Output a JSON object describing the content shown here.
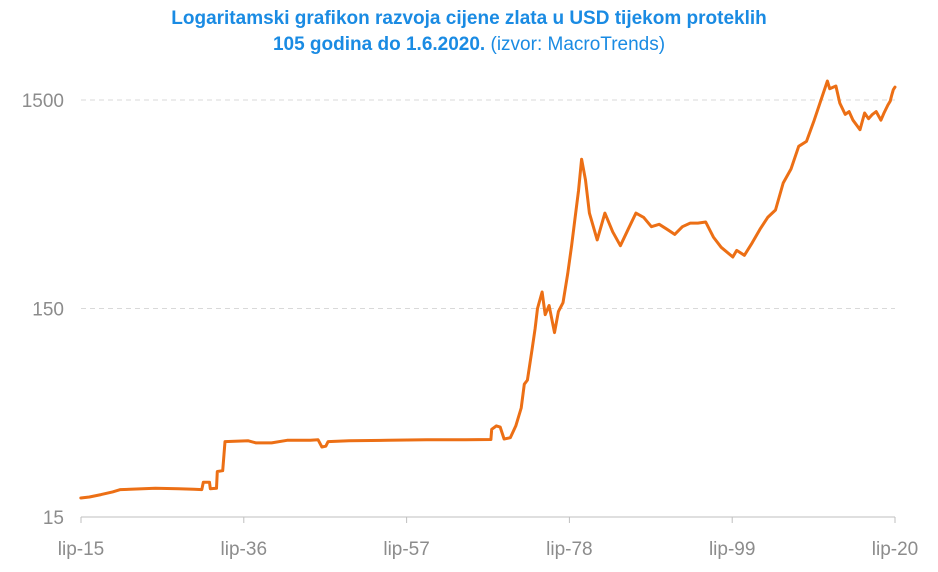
{
  "title": {
    "line1": "Logaritamski grafikon razvoja cijene zlata u USD tijekom proteklih",
    "line2_bold": "105 godina do 1.6.2020.",
    "line2_normal": "(izvor: MacroTrends)"
  },
  "colors": {
    "title": "#1a8be3",
    "line": "#ec6f15",
    "grid": "#d9d9d9",
    "axis": "#bfbfbf",
    "ticks": "#8c8c8c"
  },
  "chart_data": {
    "type": "line",
    "title": "Logaritamski grafikon razvoja cijene zlata u USD tijekom proteklih 105 godina do 1.6.2020. (izvor: MacroTrends)",
    "xlabel": "",
    "ylabel": "",
    "y_scale": "log",
    "ylim": [
      15,
      2000
    ],
    "xlim": [
      1915.42,
      2020.42
    ],
    "grid": "horizontal dashed",
    "legend": "none",
    "x_ticks": [
      {
        "label": "lip-15",
        "x": 1915.42
      },
      {
        "label": "lip-36",
        "x": 1936.42
      },
      {
        "label": "lip-57",
        "x": 1957.42
      },
      {
        "label": "lip-78",
        "x": 1978.42
      },
      {
        "label": "lip-99",
        "x": 1999.42
      },
      {
        "label": "lip-20",
        "x": 2020.42
      }
    ],
    "y_ticks": [
      {
        "label": "15",
        "y": 15
      },
      {
        "label": "150",
        "y": 150
      },
      {
        "label": "1500",
        "y": 1500
      }
    ],
    "series": [
      {
        "name": "",
        "points": [
          [
            1915.4,
            18.5
          ],
          [
            1916.5,
            18.7
          ],
          [
            1918.0,
            19.2
          ],
          [
            1919.5,
            19.8
          ],
          [
            1920.5,
            20.3
          ],
          [
            1925.0,
            20.6
          ],
          [
            1928.0,
            20.5
          ],
          [
            1930.0,
            20.4
          ],
          [
            1931.0,
            20.3
          ],
          [
            1931.2,
            22.0
          ],
          [
            1932.0,
            22.0
          ],
          [
            1932.1,
            20.5
          ],
          [
            1932.9,
            20.6
          ],
          [
            1933.0,
            24.8
          ],
          [
            1933.7,
            25.0
          ],
          [
            1934.0,
            34.5
          ],
          [
            1937.0,
            34.8
          ],
          [
            1938.0,
            34.0
          ],
          [
            1940.0,
            34.0
          ],
          [
            1942.0,
            35.0
          ],
          [
            1945.0,
            35.0
          ],
          [
            1946.0,
            35.2
          ],
          [
            1946.5,
            32.5
          ],
          [
            1947.0,
            32.8
          ],
          [
            1947.3,
            34.5
          ],
          [
            1950.0,
            34.8
          ],
          [
            1955.0,
            35.0
          ],
          [
            1960.0,
            35.2
          ],
          [
            1965.0,
            35.2
          ],
          [
            1968.3,
            35.3
          ],
          [
            1968.4,
            39.5
          ],
          [
            1969.0,
            41.0
          ],
          [
            1969.5,
            40.5
          ],
          [
            1970.0,
            35.5
          ],
          [
            1970.8,
            36.0
          ],
          [
            1971.5,
            41.0
          ],
          [
            1972.2,
            50.0
          ],
          [
            1972.6,
            65.0
          ],
          [
            1973.0,
            68.0
          ],
          [
            1973.6,
            95.0
          ],
          [
            1974.0,
            120.0
          ],
          [
            1974.3,
            150.0
          ],
          [
            1974.9,
            180.0
          ],
          [
            1975.3,
            140.0
          ],
          [
            1975.8,
            155.0
          ],
          [
            1976.5,
            115.0
          ],
          [
            1977.0,
            145.0
          ],
          [
            1977.6,
            160.0
          ],
          [
            1978.2,
            220.0
          ],
          [
            1978.7,
            300.0
          ],
          [
            1979.2,
            420.0
          ],
          [
            1979.6,
            550.0
          ],
          [
            1980.0,
            780.0
          ],
          [
            1980.5,
            620.0
          ],
          [
            1981.0,
            430.0
          ],
          [
            1982.0,
            320.0
          ],
          [
            1983.0,
            430.0
          ],
          [
            1984.0,
            350.0
          ],
          [
            1985.0,
            300.0
          ],
          [
            1986.0,
            360.0
          ],
          [
            1987.0,
            430.0
          ],
          [
            1988.0,
            410.0
          ],
          [
            1989.0,
            370.0
          ],
          [
            1990.0,
            380.0
          ],
          [
            1991.0,
            360.0
          ],
          [
            1992.0,
            340.0
          ],
          [
            1993.0,
            370.0
          ],
          [
            1994.0,
            385.0
          ],
          [
            1995.0,
            385.0
          ],
          [
            1996.0,
            390.0
          ],
          [
            1997.0,
            330.0
          ],
          [
            1998.0,
            295.0
          ],
          [
            1999.5,
            265.0
          ],
          [
            2000.0,
            285.0
          ],
          [
            2001.0,
            270.0
          ],
          [
            2002.0,
            310.0
          ],
          [
            2003.0,
            360.0
          ],
          [
            2004.0,
            410.0
          ],
          [
            2005.0,
            445.0
          ],
          [
            2006.0,
            600.0
          ],
          [
            2007.0,
            700.0
          ],
          [
            2008.0,
            900.0
          ],
          [
            2009.0,
            950.0
          ],
          [
            2010.0,
            1200.0
          ],
          [
            2011.0,
            1550.0
          ],
          [
            2011.7,
            1850.0
          ],
          [
            2012.0,
            1700.0
          ],
          [
            2012.8,
            1750.0
          ],
          [
            2013.3,
            1450.0
          ],
          [
            2014.0,
            1280.0
          ],
          [
            2014.5,
            1320.0
          ],
          [
            2015.0,
            1200.0
          ],
          [
            2015.9,
            1080.0
          ],
          [
            2016.5,
            1300.0
          ],
          [
            2017.0,
            1220.0
          ],
          [
            2017.5,
            1280.0
          ],
          [
            2018.0,
            1320.0
          ],
          [
            2018.6,
            1200.0
          ],
          [
            2019.0,
            1300.0
          ],
          [
            2019.5,
            1420.0
          ],
          [
            2019.8,
            1480.0
          ],
          [
            2020.0,
            1580.0
          ],
          [
            2020.2,
            1680.0
          ],
          [
            2020.42,
            1730.0
          ]
        ]
      }
    ]
  }
}
